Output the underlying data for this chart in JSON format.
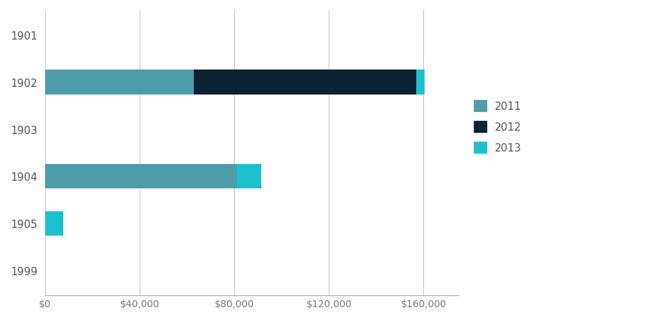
{
  "categories": [
    "1901",
    "1902",
    "1903",
    "1904",
    "1905",
    "1999"
  ],
  "series": {
    "2011": [
      0,
      63000,
      0,
      81000,
      0,
      0
    ],
    "2012": [
      0,
      94000,
      0,
      0,
      0,
      0
    ],
    "2013": [
      0,
      3500,
      0,
      10500,
      7500,
      0
    ]
  },
  "colors": {
    "2011": "#4e9baa",
    "2012": "#0d2233",
    "2013": "#1dbfcf"
  },
  "xlim": [
    0,
    175000
  ],
  "xticks": [
    0,
    40000,
    80000,
    120000,
    160000
  ],
  "xticklabels": [
    "$0",
    "$40,000",
    "$80,000",
    "$120,000",
    "$160,000"
  ],
  "legend_labels": [
    "2011",
    "2012",
    "2013"
  ],
  "bar_height": 0.52,
  "background_color": "#ffffff",
  "grid_color": "#c8c8c8",
  "spine_color": "#aaaaaa",
  "label_fontsize": 11,
  "tick_fontsize": 10,
  "legend_fontsize": 11,
  "fig_width": 9.45,
  "fig_height": 4.6
}
